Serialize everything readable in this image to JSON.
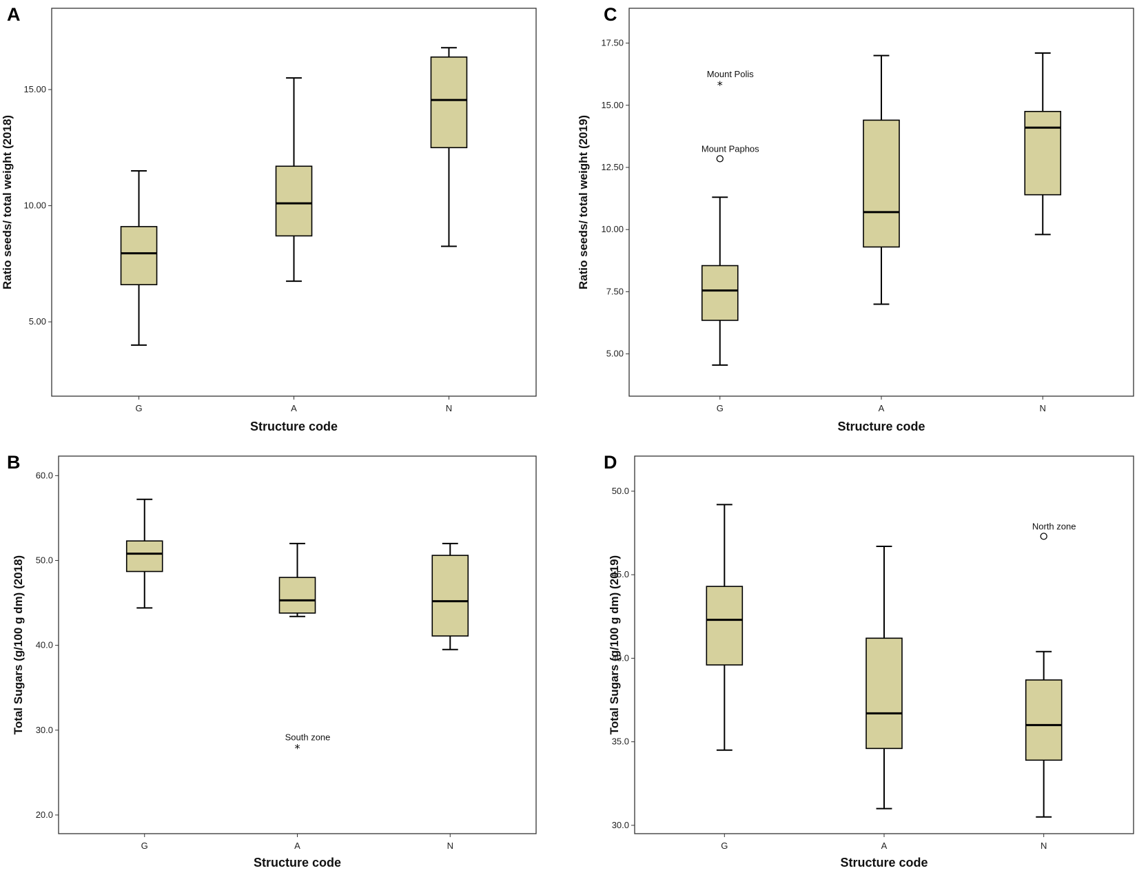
{
  "colors": {
    "box_fill": "#d6d19d",
    "stroke": "#000000",
    "frame": "#333333"
  },
  "chart_data": [
    {
      "type": "boxplot",
      "panel": "A",
      "xlabel": "Structure code",
      "ylabel": "Ratio seeds/ total weight (2018)",
      "categories": [
        "G",
        "A",
        "N"
      ],
      "ylim": [
        1.8,
        18.5
      ],
      "yticks": [
        5,
        10,
        15
      ],
      "ytick_labels": [
        "5.00",
        "10.00",
        "15.00"
      ],
      "boxes": [
        {
          "category": "G",
          "min": 4.0,
          "q1": 6.6,
          "median": 7.95,
          "q3": 9.1,
          "max": 11.5
        },
        {
          "category": "A",
          "min": 6.75,
          "q1": 8.7,
          "median": 10.1,
          "q3": 11.7,
          "max": 15.5
        },
        {
          "category": "N",
          "min": 8.25,
          "q1": 12.5,
          "median": 14.55,
          "q3": 16.4,
          "max": 16.8
        }
      ],
      "outliers": []
    },
    {
      "type": "boxplot",
      "panel": "B",
      "xlabel": "Structure code",
      "ylabel": "Total Sugars (g/100 g dm) (2018)",
      "categories": [
        "G",
        "A",
        "N"
      ],
      "ylim": [
        17.8,
        62.3
      ],
      "yticks": [
        20,
        30,
        40,
        50,
        60
      ],
      "ytick_labels": [
        "20.0",
        "30.0",
        "40.0",
        "50.0",
        "60.0"
      ],
      "boxes": [
        {
          "category": "G",
          "min": 44.4,
          "q1": 48.7,
          "median": 50.8,
          "q3": 52.3,
          "max": 57.2
        },
        {
          "category": "A",
          "min": 43.4,
          "q1": 43.8,
          "median": 45.3,
          "q3": 48.0,
          "max": 52.0
        },
        {
          "category": "N",
          "min": 39.5,
          "q1": 41.1,
          "median": 45.2,
          "q3": 50.6,
          "max": 52.0
        }
      ],
      "outliers": [
        {
          "category": "A",
          "value": 28.0,
          "marker": "star",
          "label": "South zone"
        }
      ]
    },
    {
      "type": "boxplot",
      "panel": "C",
      "xlabel": "Structure code",
      "ylabel": "Ratio seeds/ total weight (2019)",
      "categories": [
        "G",
        "A",
        "N"
      ],
      "ylim": [
        3.3,
        18.9
      ],
      "yticks": [
        5,
        7.5,
        10,
        12.5,
        15,
        17.5
      ],
      "ytick_labels": [
        "5.00",
        "7.50",
        "10.00",
        "12.50",
        "15.00",
        "17.50"
      ],
      "boxes": [
        {
          "category": "G",
          "min": 4.55,
          "q1": 6.35,
          "median": 7.55,
          "q3": 8.55,
          "max": 11.3
        },
        {
          "category": "A",
          "min": 7.0,
          "q1": 9.3,
          "median": 10.7,
          "q3": 14.4,
          "max": 17.0
        },
        {
          "category": "N",
          "min": 9.8,
          "q1": 11.4,
          "median": 14.1,
          "q3": 14.75,
          "max": 17.1
        }
      ],
      "outliers": [
        {
          "category": "G",
          "value": 15.85,
          "marker": "star",
          "label": "Mount Polis"
        },
        {
          "category": "G",
          "value": 12.85,
          "marker": "circle",
          "label": "Mount Paphos"
        }
      ]
    },
    {
      "type": "boxplot",
      "panel": "D",
      "xlabel": "Structure code",
      "ylabel": "Total Sugars (g/100 g dm) (2019)",
      "categories": [
        "G",
        "A",
        "N"
      ],
      "ylim": [
        29.5,
        52.1
      ],
      "yticks": [
        30,
        35,
        40,
        45,
        50
      ],
      "ytick_labels": [
        "30.0",
        "35.0",
        "40.0",
        "45.0",
        "50.0"
      ],
      "boxes": [
        {
          "category": "G",
          "min": 34.5,
          "q1": 39.6,
          "median": 42.3,
          "q3": 44.3,
          "max": 49.2
        },
        {
          "category": "A",
          "min": 31.0,
          "q1": 34.6,
          "median": 36.7,
          "q3": 41.2,
          "max": 46.7
        },
        {
          "category": "N",
          "min": 30.5,
          "q1": 33.9,
          "median": 36.0,
          "q3": 38.7,
          "max": 40.4
        }
      ],
      "outliers": [
        {
          "category": "N",
          "value": 47.3,
          "marker": "circle",
          "label": "North zone"
        }
      ]
    }
  ]
}
